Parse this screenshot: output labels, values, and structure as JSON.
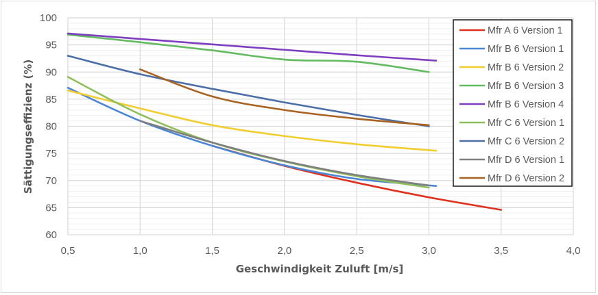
{
  "chart_data": {
    "type": "line",
    "title": "",
    "xlabel": "Geschwindigkeit Zuluft [m/s]",
    "ylabel": "Sättigungseffizienz (%)",
    "xlim": [
      0.5,
      4.0
    ],
    "ylim": [
      60,
      100
    ],
    "x_ticks": [
      "0,5",
      "1,0",
      "1,5",
      "2,0",
      "2,5",
      "3,0",
      "3,5",
      "4,0"
    ],
    "y_ticks": [
      "60",
      "65",
      "70",
      "75",
      "80",
      "85",
      "90",
      "95",
      "100"
    ],
    "grid": {
      "major_x": true,
      "major_y": true,
      "minor_y_step": 1
    },
    "legend_position": "upper-right-inside",
    "series": [
      {
        "name": "Mfr A 6 Version 1",
        "color": "#e0301e",
        "x": [
          1.5,
          2.0,
          2.5,
          3.0,
          3.5
        ],
        "y": [
          76.4,
          72.7,
          69.6,
          66.9,
          64.6
        ]
      },
      {
        "name": "Mfr B 6 Version 1",
        "color": "#4a86d6",
        "x": [
          0.5,
          1.0,
          1.5,
          2.0,
          2.5,
          3.05
        ],
        "y": [
          87.1,
          81.0,
          76.4,
          72.8,
          70.3,
          69.0
        ]
      },
      {
        "name": "Mfr B 6 Version 2",
        "color": "#f2cd2e",
        "x": [
          0.5,
          1.0,
          1.5,
          2.0,
          2.5,
          3.05
        ],
        "y": [
          86.6,
          83.3,
          80.2,
          78.2,
          76.7,
          75.5
        ]
      },
      {
        "name": "Mfr B 6 Version 3",
        "color": "#62bb5f",
        "x": [
          0.5,
          1.0,
          1.5,
          2.0,
          2.5,
          3.0
        ],
        "y": [
          96.9,
          95.5,
          94.0,
          92.3,
          91.9,
          90.0
        ]
      },
      {
        "name": "Mfr B 6 Version 4",
        "color": "#7d3fbf",
        "x": [
          0.5,
          1.0,
          1.5,
          2.0,
          2.5,
          3.05
        ],
        "y": [
          97.1,
          96.1,
          95.1,
          94.1,
          93.1,
          92.1
        ]
      },
      {
        "name": "Mfr C 6 Version 1",
        "color": "#8fbf58",
        "x": [
          0.5,
          1.0,
          1.5,
          2.0,
          2.5,
          3.0
        ],
        "y": [
          89.1,
          82.2,
          77.0,
          73.5,
          70.8,
          68.7
        ]
      },
      {
        "name": "Mfr C 6 Version 2",
        "color": "#4a6fa8",
        "x": [
          0.5,
          1.0,
          1.5,
          2.0,
          2.5,
          3.0
        ],
        "y": [
          93.0,
          89.6,
          86.9,
          84.4,
          82.1,
          80.0
        ]
      },
      {
        "name": "Mfr D 6 Version 1",
        "color": "#7f7f7f",
        "x": [
          1.0,
          1.5,
          2.0,
          2.5,
          3.0
        ],
        "y": [
          81.0,
          77.0,
          73.6,
          71.0,
          69.1
        ]
      },
      {
        "name": "Mfr D 6 Version 2",
        "color": "#a9621f",
        "x": [
          1.0,
          1.5,
          2.0,
          2.5,
          3.0
        ],
        "y": [
          90.5,
          85.5,
          83.0,
          81.4,
          80.2
        ]
      }
    ]
  }
}
